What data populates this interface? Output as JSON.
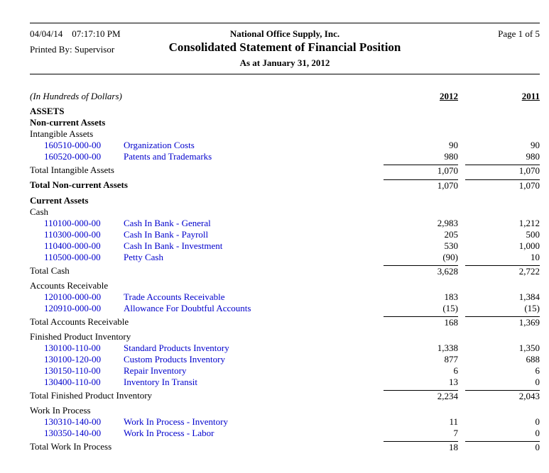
{
  "header": {
    "date": "04/04/14",
    "time": "07:17:10 PM",
    "company": "National Office Supply, Inc.",
    "page": "Page 1 of 5",
    "printed_by": "Printed By: Supervisor",
    "title": "Consolidated Statement of Financial Position",
    "subtitle": "As at January 31, 2012"
  },
  "columns": {
    "note": "(In Hundreds of Dollars)",
    "col1": "2012",
    "col2": "2011"
  },
  "colors": {
    "link_blue": "#0000cc",
    "text": "#000000",
    "background": "#ffffff"
  },
  "rows": [
    {
      "type": "heading",
      "label": "ASSETS"
    },
    {
      "type": "heading",
      "label": "Non-current Assets"
    },
    {
      "type": "sub",
      "label": "Intangible Assets"
    },
    {
      "type": "acct",
      "code": "160510-000-00",
      "name": "Organization Costs",
      "v1": "90",
      "v2": "90"
    },
    {
      "type": "acct",
      "code": "160520-000-00",
      "name": "Patents and Trademarks",
      "v1": "980",
      "v2": "980"
    },
    {
      "type": "total",
      "label": "Total Intangible Assets",
      "v1": "1,070",
      "v2": "1,070"
    },
    {
      "type": "gtotal",
      "label": "Total Non-current Assets",
      "v1": "1,070",
      "v2": "1,070"
    },
    {
      "type": "heading",
      "label": "Current Assets"
    },
    {
      "type": "sub",
      "label": "Cash"
    },
    {
      "type": "acct",
      "code": "110100-000-00",
      "name": "Cash In Bank - General",
      "v1": "2,983",
      "v2": "1,212"
    },
    {
      "type": "acct",
      "code": "110300-000-00",
      "name": "Cash In Bank - Payroll",
      "v1": "205",
      "v2": "500"
    },
    {
      "type": "acct",
      "code": "110400-000-00",
      "name": "Cash In Bank - Investment",
      "v1": "530",
      "v2": "1,000"
    },
    {
      "type": "acct",
      "code": "110500-000-00",
      "name": "Petty Cash",
      "v1": "(90)",
      "v2": "10"
    },
    {
      "type": "total",
      "label": "Total Cash",
      "v1": "3,628",
      "v2": "2,722"
    },
    {
      "type": "sub",
      "label": "Accounts Receivable"
    },
    {
      "type": "acct",
      "code": "120100-000-00",
      "name": "Trade Accounts Receivable",
      "v1": "183",
      "v2": "1,384"
    },
    {
      "type": "acct",
      "code": "120910-000-00",
      "name": "Allowance For Doubtful Accounts",
      "v1": "(15)",
      "v2": "(15)"
    },
    {
      "type": "total",
      "label": "Total Accounts Receivable",
      "v1": "168",
      "v2": "1,369"
    },
    {
      "type": "sub",
      "label": "Finished Product Inventory"
    },
    {
      "type": "acct",
      "code": "130100-110-00",
      "name": "Standard Products Inventory",
      "v1": "1,338",
      "v2": "1,350"
    },
    {
      "type": "acct",
      "code": "130100-120-00",
      "name": "Custom Products Inventory",
      "v1": "877",
      "v2": "688"
    },
    {
      "type": "acct",
      "code": "130150-110-00",
      "name": "Repair Inventory",
      "v1": "6",
      "v2": "6"
    },
    {
      "type": "acct",
      "code": "130400-110-00",
      "name": "Inventory In Transit",
      "v1": "13",
      "v2": "0"
    },
    {
      "type": "total",
      "label": "Total Finished Product Inventory",
      "v1": "2,234",
      "v2": "2,043"
    },
    {
      "type": "sub",
      "label": "Work In Process"
    },
    {
      "type": "acct",
      "code": "130310-140-00",
      "name": "Work In Process - Inventory",
      "v1": "11",
      "v2": "0"
    },
    {
      "type": "acct",
      "code": "130350-140-00",
      "name": "Work In Process - Labor",
      "v1": "7",
      "v2": "0"
    },
    {
      "type": "total",
      "label": "Total Work In Process",
      "v1": "18",
      "v2": "0"
    }
  ]
}
